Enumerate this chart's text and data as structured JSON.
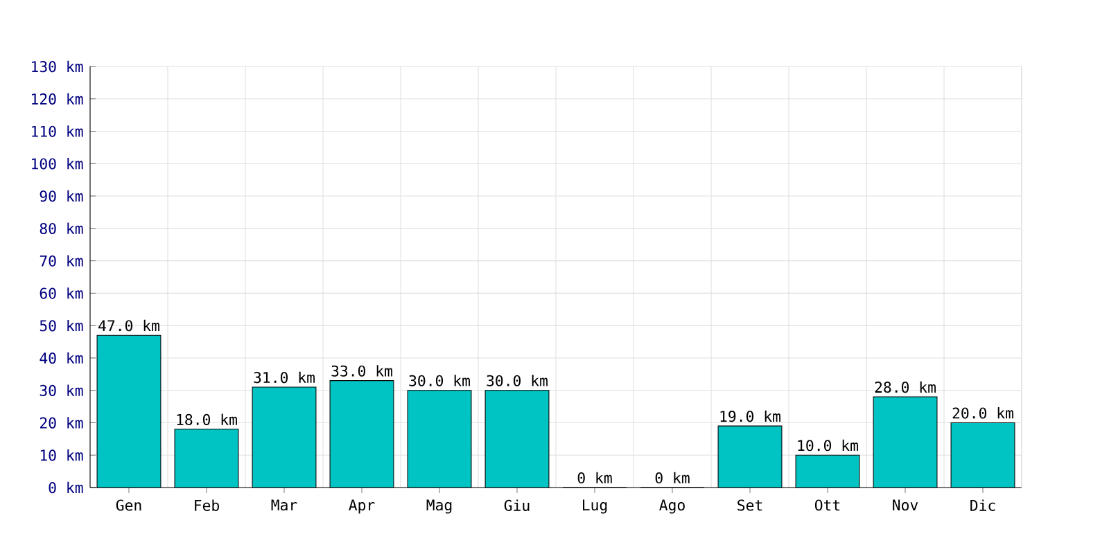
{
  "chart_data": {
    "type": "bar",
    "categories": [
      "Gen",
      "Feb",
      "Mar",
      "Apr",
      "Mag",
      "Giu",
      "Lug",
      "Ago",
      "Set",
      "Ott",
      "Nov",
      "Dic"
    ],
    "values": [
      47,
      18,
      31,
      33,
      30,
      30,
      0,
      0,
      19,
      10,
      28,
      20
    ],
    "value_labels": [
      "47.0 km",
      "18.0 km",
      "31.0 km",
      "33.0 km",
      "30.0 km",
      "30.0 km",
      "0 km",
      "0 km",
      "19.0 km",
      "10.0 km",
      "28.0 km",
      "20.0 km"
    ],
    "color": "#00c4c4",
    "ylim": [
      0,
      130
    ],
    "yticks": [
      {
        "value": 0,
        "label": "0 km"
      },
      {
        "value": 10,
        "label": "10 km"
      },
      {
        "value": 20,
        "label": "20 km"
      },
      {
        "value": 30,
        "label": "30 km"
      },
      {
        "value": 40,
        "label": "40 km"
      },
      {
        "value": 50,
        "label": "50 km"
      },
      {
        "value": 60,
        "label": "60 km"
      },
      {
        "value": 70,
        "label": "70 km"
      },
      {
        "value": 80,
        "label": "80 km"
      },
      {
        "value": 90,
        "label": "90 km"
      },
      {
        "value": 100,
        "label": "100 km"
      },
      {
        "value": 110,
        "label": "110 km"
      },
      {
        "value": 120,
        "label": "120 km"
      },
      {
        "value": 130,
        "label": "130 km"
      }
    ],
    "grid": true
  }
}
